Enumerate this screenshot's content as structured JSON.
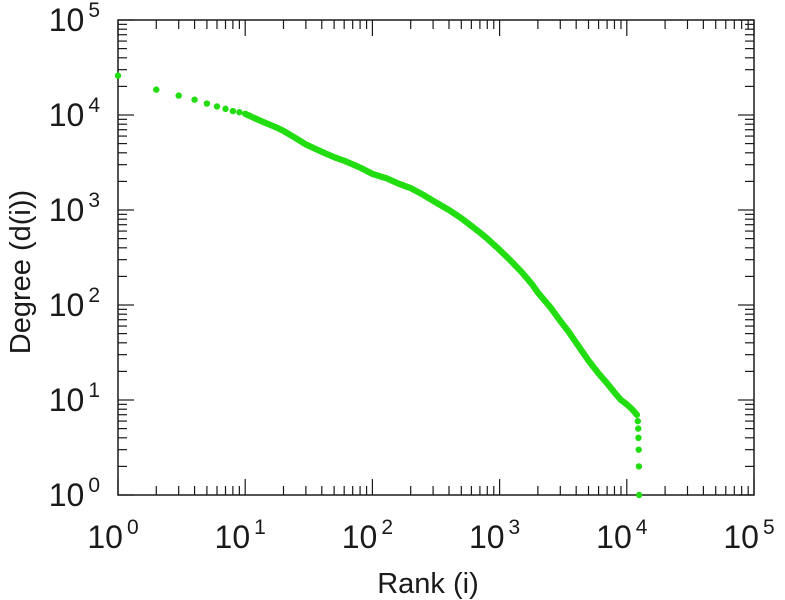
{
  "chart_data": {
    "type": "scatter",
    "xlabel": "Rank (i)",
    "ylabel": "Degree (d(i))",
    "xscale": "log",
    "yscale": "log",
    "xlim": [
      1,
      100000
    ],
    "ylim": [
      1,
      100000
    ],
    "x_ticks": [
      {
        "base": "10",
        "exp": "0",
        "value": 1
      },
      {
        "base": "10",
        "exp": "1",
        "value": 10
      },
      {
        "base": "10",
        "exp": "2",
        "value": 100
      },
      {
        "base": "10",
        "exp": "3",
        "value": 1000
      },
      {
        "base": "10",
        "exp": "4",
        "value": 10000
      },
      {
        "base": "10",
        "exp": "5",
        "value": 100000
      }
    ],
    "y_ticks": [
      {
        "base": "10",
        "exp": "0",
        "value": 1
      },
      {
        "base": "10",
        "exp": "1",
        "value": 10
      },
      {
        "base": "10",
        "exp": "2",
        "value": 100
      },
      {
        "base": "10",
        "exp": "3",
        "value": 1000
      },
      {
        "base": "10",
        "exp": "4",
        "value": 10000
      },
      {
        "base": "10",
        "exp": "5",
        "value": 100000
      }
    ],
    "grid": false,
    "series": [
      {
        "color": "#22dd11",
        "points": [
          [
            1,
            26000
          ],
          [
            2,
            18500
          ],
          [
            3,
            16000
          ],
          [
            4,
            14500
          ],
          [
            5,
            13200
          ],
          [
            6,
            12300
          ],
          [
            7,
            11600
          ],
          [
            8,
            11000
          ],
          [
            9,
            10700
          ],
          [
            10,
            10300
          ],
          [
            12,
            9200
          ],
          [
            14,
            8400
          ],
          [
            16,
            7800
          ],
          [
            18,
            7300
          ],
          [
            20,
            6800
          ],
          [
            25,
            5700
          ],
          [
            30,
            4900
          ],
          [
            40,
            4100
          ],
          [
            50,
            3600
          ],
          [
            60,
            3300
          ],
          [
            80,
            2800
          ],
          [
            100,
            2400
          ],
          [
            130,
            2150
          ],
          [
            160,
            1900
          ],
          [
            200,
            1700
          ],
          [
            250,
            1450
          ],
          [
            300,
            1250
          ],
          [
            400,
            1000
          ],
          [
            500,
            820
          ],
          [
            600,
            680
          ],
          [
            700,
            580
          ],
          [
            800,
            500
          ],
          [
            1000,
            380
          ],
          [
            1200,
            300
          ],
          [
            1500,
            220
          ],
          [
            1800,
            165
          ],
          [
            2000,
            135
          ],
          [
            2500,
            95
          ],
          [
            3000,
            68
          ],
          [
            3500,
            52
          ],
          [
            4000,
            40
          ],
          [
            5000,
            26
          ],
          [
            6000,
            19
          ],
          [
            7000,
            15
          ],
          [
            8000,
            12
          ],
          [
            9000,
            10
          ],
          [
            10000,
            9
          ],
          [
            11000,
            8
          ],
          [
            12000,
            7
          ],
          [
            12200,
            6
          ],
          [
            12300,
            5
          ],
          [
            12350,
            4
          ],
          [
            12400,
            3
          ],
          [
            12450,
            2
          ],
          [
            12500,
            1
          ]
        ]
      }
    ]
  }
}
